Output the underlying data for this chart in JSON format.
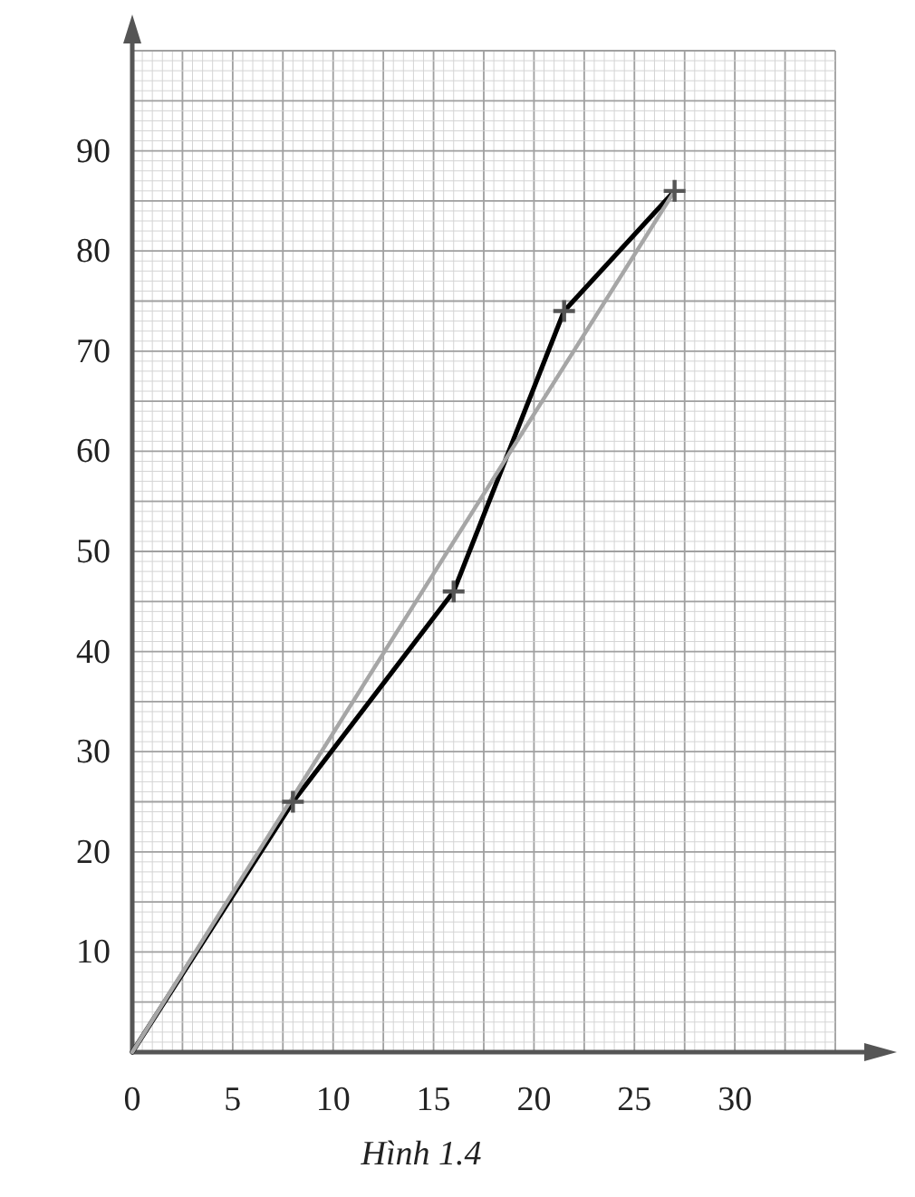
{
  "chart_data": {
    "type": "line",
    "annotations": [
      "Hình 1.4"
    ],
    "xlim": [
      0,
      35
    ],
    "ylim": [
      0,
      100
    ],
    "xticks": [
      0,
      5,
      10,
      15,
      20,
      25,
      30
    ],
    "yticks": [
      10,
      20,
      30,
      40,
      50,
      60,
      70,
      80,
      90
    ],
    "grid": true,
    "series": [
      {
        "color": "#000000",
        "x": [
          0,
          8,
          16,
          21.5,
          27
        ],
        "values": [
          0,
          25,
          46,
          74,
          86
        ],
        "marker": "none"
      },
      {
        "color": "#a6a6a6",
        "x": [
          0,
          27
        ],
        "values": [
          0,
          86
        ],
        "marker": "none"
      },
      {
        "type": "scatter",
        "color": "#555555",
        "x": [
          8,
          16,
          21.5,
          27
        ],
        "values": [
          25,
          46,
          74,
          86
        ],
        "marker": "cross"
      }
    ]
  }
}
